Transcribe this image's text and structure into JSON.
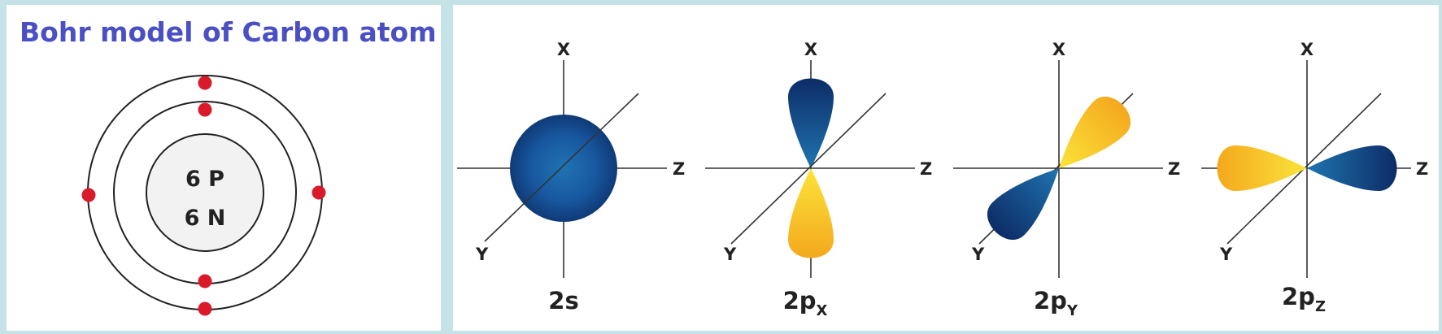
{
  "bohr": {
    "title": "Bohr model of Carbon atom",
    "nucleus": {
      "protons": "6 P",
      "neutrons": "6 N"
    },
    "electron_color": "#d91a2a"
  },
  "orbitals": [
    {
      "name": "2s",
      "sub": "",
      "axes": {
        "x": "X",
        "y": "Y",
        "z": "Z"
      }
    },
    {
      "name": "2p",
      "sub": "X",
      "axes": {
        "x": "X",
        "y": "Y",
        "z": "Z"
      }
    },
    {
      "name": "2p",
      "sub": "Y",
      "axes": {
        "x": "X",
        "y": "Y",
        "z": "Z"
      }
    },
    {
      "name": "2p",
      "sub": "Z",
      "axes": {
        "x": "X",
        "y": "Y",
        "z": "Z"
      }
    }
  ],
  "colors": {
    "blue_lobe": "#123f84",
    "yellow_lobe": "#f6c51a",
    "title": "#4a4fc4"
  }
}
